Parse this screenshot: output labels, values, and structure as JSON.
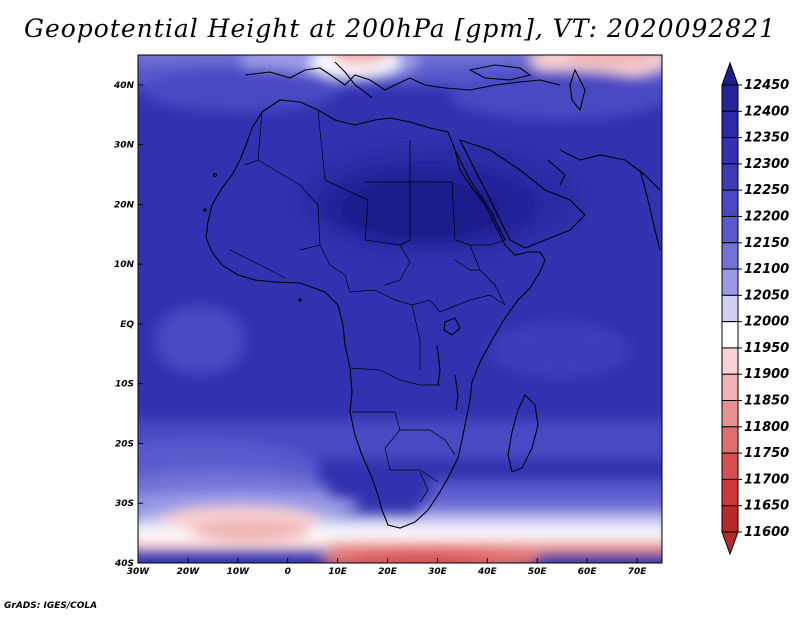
{
  "title": "Geopotential Height at 200hPa [gpm], VT: 2020092821",
  "footer": "GrADS: IGES/COLA",
  "map": {
    "projection": "latlon",
    "lon_range": [
      -30,
      75
    ],
    "lat_range": [
      -40,
      45
    ],
    "lon_ticks": [
      "30W",
      "20W",
      "10W",
      "0",
      "10E",
      "20E",
      "30E",
      "40E",
      "50E",
      "60E",
      "70E"
    ],
    "lat_ticks": [
      "40N",
      "30N",
      "20N",
      "10N",
      "EQ",
      "10S",
      "20S",
      "30S",
      "40S"
    ],
    "variable": "Geopotential Height at 200hPa",
    "units": "gpm",
    "valid_time": "2020092821"
  },
  "colorbar": {
    "levels": [
      "12450",
      "12400",
      "12350",
      "12300",
      "12250",
      "12200",
      "12150",
      "12100",
      "12050",
      "12000",
      "11950",
      "11900",
      "11850",
      "11800",
      "11750",
      "11700",
      "11650",
      "11600"
    ],
    "colors": [
      "#1e1e8c",
      "#24249a",
      "#2b2ba6",
      "#3232b0",
      "#3c3cbb",
      "#4949c4",
      "#5a5acd",
      "#7272d8",
      "#9a9ae6",
      "#cfcff3",
      "#ffffff",
      "#f8d2d2",
      "#f1b3b3",
      "#e99090",
      "#e06e6e",
      "#d74f4f",
      "#cc3737",
      "#b82a2a"
    ]
  }
}
